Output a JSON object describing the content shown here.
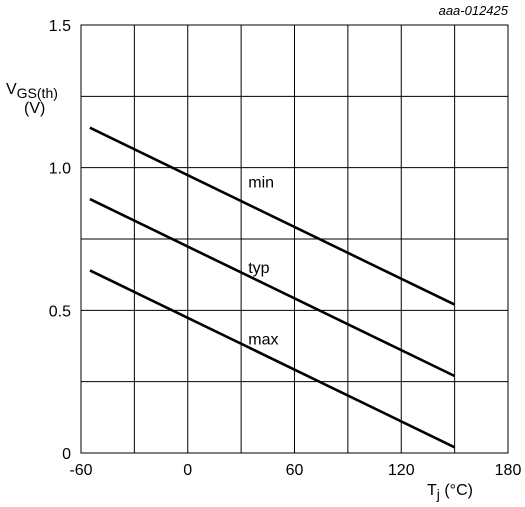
{
  "chart_data": {
    "type": "line",
    "reference": "aaa-012425",
    "ylabel_main": "V",
    "ylabel_sub": "GS(th)",
    "ylabel_unit": "(V)",
    "xlabel_main": "T",
    "xlabel_sub": "j",
    "xlabel_unit": " (°C)",
    "xlim": [
      -60,
      180
    ],
    "ylim": [
      0,
      1.5
    ],
    "x_ticks": [
      -60,
      0,
      60,
      120,
      180
    ],
    "x_tick_labels": [
      "-60",
      "0",
      "60",
      "120",
      "180"
    ],
    "x_gridlines": [
      -60,
      -30,
      0,
      30,
      60,
      90,
      120,
      150,
      180
    ],
    "y_ticks": [
      0,
      0.5,
      1.0,
      1.5
    ],
    "y_tick_labels": [
      "0",
      "0.5",
      "1.0",
      "1.5"
    ],
    "y_gridlines": [
      0,
      0.25,
      0.5,
      0.75,
      1.0,
      1.25,
      1.5
    ],
    "grid": true,
    "series": [
      {
        "name": "min",
        "x": [
          -55,
          150
        ],
        "y": [
          1.14,
          0.52
        ],
        "label_at": [
          34,
          0.93
        ]
      },
      {
        "name": "typ",
        "x": [
          -55,
          150
        ],
        "y": [
          0.89,
          0.27
        ],
        "label_at": [
          34,
          0.63
        ]
      },
      {
        "name": "max",
        "x": [
          -55,
          150
        ],
        "y": [
          0.64,
          0.02
        ],
        "label_at": [
          34,
          0.38
        ]
      }
    ]
  }
}
